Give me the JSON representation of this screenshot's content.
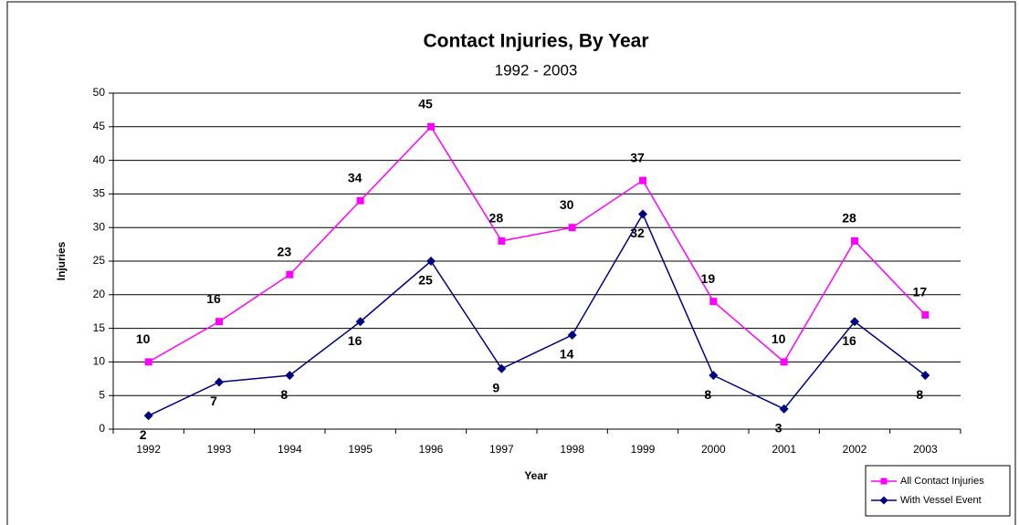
{
  "chart_data": {
    "type": "line",
    "title": "Contact Injuries, By Year",
    "subtitle": "1992 - 2003",
    "x_label": "Year",
    "y_label": "Injuries",
    "categories": [
      "1992",
      "1993",
      "1994",
      "1995",
      "1996",
      "1997",
      "1998",
      "1999",
      "2000",
      "2001",
      "2002",
      "2003"
    ],
    "series": [
      {
        "name": "All Contact Injuries",
        "color": "#ff00ff",
        "marker": "square",
        "values": [
          10,
          16,
          23,
          34,
          45,
          28,
          30,
          37,
          19,
          10,
          28,
          17
        ]
      },
      {
        "name": "With Vessel Event",
        "color": "#000080",
        "marker": "diamond",
        "values": [
          2,
          7,
          8,
          16,
          25,
          9,
          14,
          32,
          8,
          3,
          16,
          8
        ]
      }
    ],
    "ylim": [
      0,
      50
    ],
    "yticks": [
      0,
      5,
      10,
      15,
      20,
      25,
      30,
      35,
      40,
      45,
      50
    ],
    "grid": true,
    "legend": "bottom-right"
  }
}
